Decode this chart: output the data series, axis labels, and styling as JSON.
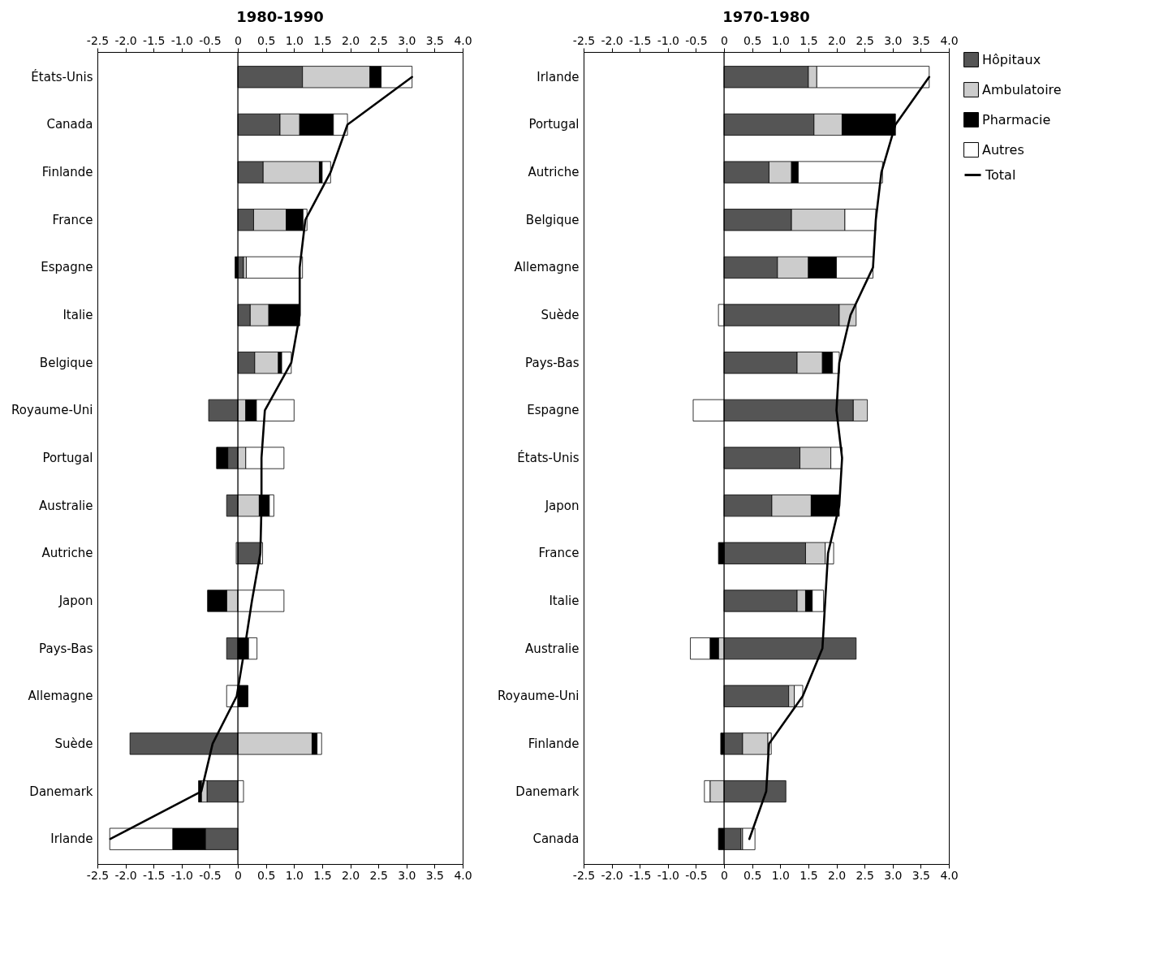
{
  "chart_data": [
    {
      "type": "bar",
      "title": "1980-1990",
      "orientation": "horizontal",
      "stacked": true,
      "marker": "none",
      "categories": [
        "États-Unis",
        "Canada",
        "Finlande",
        "France",
        "Espagne",
        "Italie",
        "Belgique",
        "Royaume-Uni",
        "Portugal",
        "Australie",
        "Autriche",
        "Japon",
        "Pays-Bas",
        "Allemagne",
        "Suède",
        "Danemark",
        "Irlande"
      ],
      "series": [
        {
          "color": "#555555",
          "values": [
            1.15,
            0.75,
            0.45,
            0.28,
            0.1,
            0.22,
            0.3,
            -0.52,
            -0.18,
            -0.2,
            0.4,
            0,
            -0.2,
            0,
            -1.92,
            -0.55,
            -0.58
          ]
        },
        {
          "color": "#cccccc",
          "values": [
            1.2,
            0.35,
            1.0,
            0.58,
            0.05,
            0.33,
            0.42,
            0.14,
            0.14,
            0.38,
            -0.03,
            -0.2,
            0,
            0,
            1.32,
            -0.1,
            0
          ]
        },
        {
          "color": "#000000",
          "values": [
            0.2,
            0.6,
            0.05,
            0.3,
            -0.05,
            0.55,
            0.06,
            0.19,
            -0.2,
            0.18,
            0,
            -0.34,
            0.19,
            0.18,
            0.09,
            -0.05,
            -0.58
          ]
        },
        {
          "color": "#ffffff",
          "values": [
            0.55,
            0.25,
            0.15,
            0.07,
            1.0,
            0,
            0.17,
            0.67,
            0.68,
            0.08,
            0.04,
            0.82,
            0.15,
            -0.2,
            0.08,
            0.1,
            -1.12
          ]
        },
        {
          "type": "line",
          "color": "#000000",
          "values": [
            3.1,
            1.95,
            1.65,
            1.2,
            1.1,
            1.1,
            0.95,
            0.48,
            0.42,
            0.42,
            0.4,
            0.25,
            0.12,
            -0.02,
            -0.45,
            -0.65,
            -2.27
          ]
        }
      ],
      "ref_lines": [
        {
          "axis": "x",
          "value": 0,
          "color": "#000000"
        }
      ],
      "xlim": [
        -2.5,
        4
      ],
      "xticks": [
        -2.5,
        {
          "value": -2,
          "label": "-2.0"
        },
        -1.5,
        {
          "value": -1,
          "label": "-1.0"
        },
        -0.5,
        0,
        0.5,
        {
          "value": 1,
          "label": "1.0"
        },
        1.5,
        {
          "value": 2,
          "label": "2.0"
        },
        2.5,
        {
          "value": 3,
          "label": "3.0"
        },
        3.5,
        {
          "value": 4,
          "label": "4.0"
        }
      ],
      "x2lim": [
        -2.5,
        4
      ],
      "x2ticks": [
        -2.5,
        {
          "value": -2,
          "label": "-2.0"
        },
        -1.5,
        {
          "value": -1,
          "label": "-1.0"
        },
        -0.5,
        0,
        0.5,
        {
          "value": 1,
          "label": "1.0"
        },
        1.5,
        {
          "value": 2,
          "label": "2.0"
        },
        2.5,
        {
          "value": 3,
          "label": "3.0"
        },
        3.5,
        {
          "value": 4,
          "label": "4.0"
        }
      ]
    },
    {
      "type": "bar",
      "title": "1970-1980",
      "orientation": "horizontal",
      "stacked": true,
      "legend": "right",
      "marker": "none",
      "categories": [
        "Irlande",
        "Portugal",
        "Autriche",
        "Belgique",
        "Allemagne",
        "Suède",
        "Pays-Bas",
        "Espagne",
        "États-Unis",
        "Japon",
        "France",
        "Italie",
        "Australie",
        "Royaume-Uni",
        "Finlande",
        "Danemark",
        "Canada"
      ],
      "series": [
        {
          "name": "Hôpitaux",
          "color": "#555555",
          "values": [
            1.5,
            1.6,
            0.8,
            1.2,
            0.95,
            2.05,
            1.3,
            2.3,
            1.35,
            0.85,
            1.45,
            1.3,
            2.35,
            1.15,
            0.33,
            1.1,
            0.3
          ]
        },
        {
          "name": "Ambulatoire",
          "color": "#cccccc",
          "values": [
            0.15,
            0.5,
            0.4,
            0.95,
            0.55,
            0.3,
            0.45,
            0.25,
            0.55,
            0.7,
            0.35,
            0.15,
            -0.1,
            0.1,
            0.45,
            -0.25,
            0.03
          ]
        },
        {
          "name": "Pharmacie",
          "color": "#000000",
          "values": [
            0,
            0.95,
            0.12,
            0,
            0.5,
            0,
            0.18,
            0,
            0,
            0.5,
            -0.1,
            0.12,
            -0.15,
            0,
            -0.06,
            0,
            -0.1
          ]
        },
        {
          "name": "Autres",
          "color": "#ffffff",
          "values": [
            2.0,
            0,
            1.5,
            0.55,
            0.65,
            -0.1,
            0.12,
            -0.55,
            0.2,
            0,
            0.15,
            0.2,
            -0.35,
            0.15,
            0.06,
            -0.1,
            0.22
          ]
        },
        {
          "name": "Total",
          "type": "line",
          "color": "#000000",
          "values": [
            3.65,
            3.05,
            2.8,
            2.7,
            2.65,
            2.25,
            2.05,
            2.0,
            2.1,
            2.05,
            1.85,
            1.8,
            1.75,
            1.4,
            0.8,
            0.75,
            0.45
          ]
        }
      ],
      "ref_lines": [
        {
          "axis": "x",
          "value": 0,
          "color": "#000000"
        }
      ],
      "xlim": [
        -2.5,
        4
      ],
      "xticks": [
        -2.5,
        {
          "value": -2,
          "label": "-2.0"
        },
        -1.5,
        {
          "value": -1,
          "label": "-1.0"
        },
        -0.5,
        0,
        0.5,
        {
          "value": 1,
          "label": "1.0"
        },
        1.5,
        {
          "value": 2,
          "label": "2.0"
        },
        2.5,
        {
          "value": 3,
          "label": "3.0"
        },
        3.5,
        {
          "value": 4,
          "label": "4.0"
        }
      ],
      "x2lim": [
        -2.5,
        4
      ],
      "x2ticks": [
        -2.5,
        {
          "value": -2,
          "label": "-2.0"
        },
        -1.5,
        {
          "value": -1,
          "label": "-1.0"
        },
        -0.5,
        0,
        0.5,
        {
          "value": 1,
          "label": "1.0"
        },
        1.5,
        {
          "value": 2,
          "label": "2.0"
        },
        2.5,
        {
          "value": 3,
          "label": "3.0"
        },
        3.5,
        {
          "value": 4,
          "label": "4.0"
        }
      ]
    }
  ]
}
